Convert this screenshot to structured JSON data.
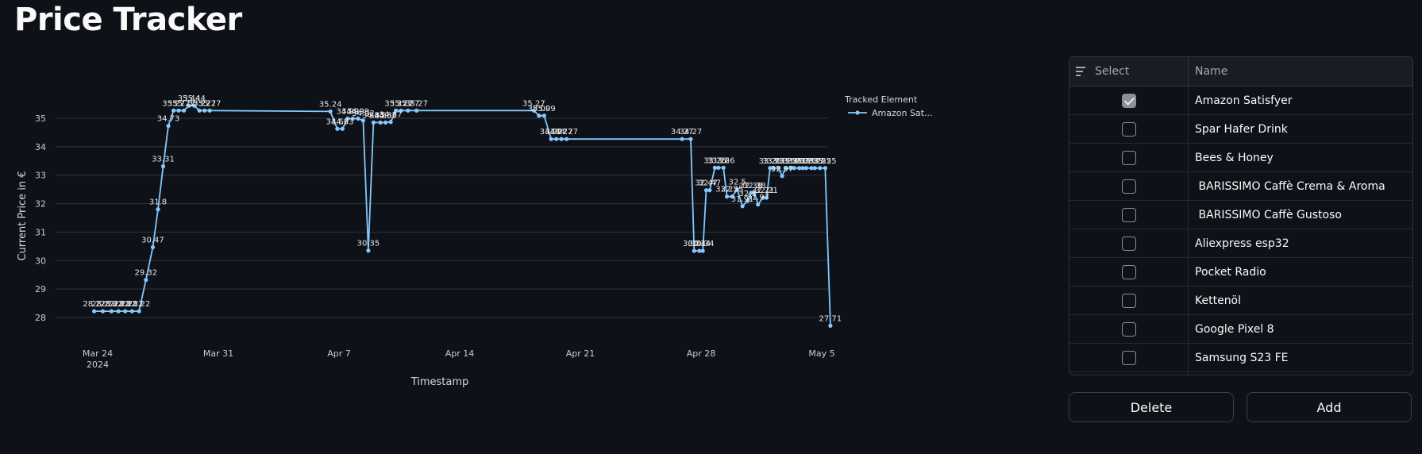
{
  "app": {
    "title": "Price Tracker"
  },
  "chart_data": {
    "type": "line",
    "xlabel": "Timestamp",
    "ylabel": "Current Price in €",
    "ylim": [
      27.4,
      35.9
    ],
    "yticks": [
      "28",
      "29",
      "30",
      "31",
      "32",
      "33",
      "34",
      "35"
    ],
    "xticks": [
      {
        "label": "Mar 24",
        "sub": "2024",
        "day": 24
      },
      {
        "label": "Mar 31",
        "sub": "",
        "day": 31
      },
      {
        "label": "Apr 7",
        "sub": "",
        "day": 38
      },
      {
        "label": "Apr 14",
        "sub": "",
        "day": 45
      },
      {
        "label": "Apr 21",
        "sub": "",
        "day": 52
      },
      {
        "label": "Apr 28",
        "sub": "",
        "day": 59
      },
      {
        "label": "May 5",
        "sub": "",
        "day": 66
      }
    ],
    "legend": {
      "title": "Tracked Element",
      "placement": "right",
      "entries": [
        "Amazon Sat..."
      ]
    },
    "color": "#83c9ff",
    "series": [
      {
        "name": "Amazon Satisfyer",
        "x": [
          23.8,
          24.3,
          24.8,
          25.2,
          25.6,
          26.0,
          26.4,
          26.8,
          27.2,
          27.5,
          27.8,
          28.1,
          28.4,
          28.7,
          29.0,
          29.3,
          29.6,
          29.9,
          30.2,
          30.5,
          37.5,
          37.9,
          38.2,
          38.5,
          38.8,
          39.1,
          39.4,
          39.7,
          40.0,
          40.4,
          40.7,
          41.0,
          41.3,
          41.6,
          42.0,
          42.5,
          49.3,
          49.6,
          49.9,
          50.3,
          50.6,
          50.9,
          51.2,
          57.9,
          58.4,
          58.6,
          58.9,
          59.1,
          59.3,
          59.5,
          59.8,
          60.0,
          60.3,
          60.5,
          60.8,
          61.1,
          61.4,
          61.7,
          61.9,
          62.1,
          62.3,
          62.6,
          62.8,
          63.0,
          63.2,
          63.5,
          63.7,
          63.9,
          64.2,
          64.4,
          64.7,
          64.9,
          65.1,
          65.4,
          65.6,
          65.9,
          66.2,
          66.5
        ],
        "values": [
          28.22,
          28.22,
          28.22,
          28.22,
          28.22,
          28.22,
          28.22,
          29.32,
          30.47,
          31.8,
          33.31,
          34.73,
          35.27,
          35.27,
          35.27,
          35.44,
          35.44,
          35.27,
          35.27,
          35.27,
          35.24,
          34.63,
          34.63,
          34.99,
          34.99,
          34.99,
          34.92,
          30.35,
          34.85,
          34.85,
          34.85,
          34.87,
          35.27,
          35.27,
          35.27,
          35.27,
          35.27,
          35.09,
          35.09,
          34.27,
          34.27,
          34.27,
          34.27,
          34.27,
          34.27,
          30.34,
          30.34,
          30.34,
          32.47,
          32.47,
          33.26,
          33.26,
          33.26,
          32.25,
          32.25,
          32.5,
          31.91,
          32.1,
          32.38,
          32.38,
          31.97,
          32.21,
          32.21,
          33.25,
          33.25,
          33.25,
          32.97,
          33.25,
          33.25,
          33.25,
          33.25,
          33.25,
          33.25,
          33.25,
          33.25,
          33.25,
          33.25,
          27.71
        ],
        "labels": [
          "28.22",
          "28.22",
          "28.22",
          "28.22",
          "28.22",
          "28.22",
          "28.22",
          "29.32",
          "30.47",
          "31.8",
          "33.31",
          "34.73",
          "35.27",
          "35.27",
          "35.27",
          "35.44",
          "35.44",
          "35.27",
          "35.27",
          "35.27",
          "35.24",
          "34.63",
          "34.63",
          "34.99",
          "34.99",
          "34.99",
          "34.92",
          "30.35",
          "34.85",
          "34.85",
          "34.85",
          "34.87",
          "35.27",
          "35.27",
          "35.27",
          "35.27",
          "35.27",
          "35.09",
          "35.09",
          "34.27",
          "34.27",
          "34.27",
          "34.27",
          "34.27",
          "34.27",
          "30.34",
          "30.34",
          "30.34",
          "32.47",
          "32.47",
          "33.26",
          "33.26",
          "33.26",
          "32.25",
          "32.25",
          "32.5",
          "31.91",
          "32.1",
          "32.38",
          "32.38",
          "31.97",
          "32.21",
          "32.21",
          "33.25",
          "33.25",
          "33.25",
          "32.97",
          "33.25",
          "33.25",
          "33.25",
          "33.25",
          "33.25",
          "33.25",
          "33.25",
          "33.25",
          "33.25",
          "33.25",
          "27.71"
        ]
      }
    ]
  },
  "table": {
    "headers": {
      "select": "Select",
      "name": "Name"
    },
    "rows": [
      {
        "name": "Amazon Satisfyer",
        "checked": true
      },
      {
        "name": "Spar Hafer Drink",
        "checked": false
      },
      {
        "name": "Bees & Honey",
        "checked": false
      },
      {
        "name": " BARISSIMO Caffè Crema & Aroma",
        "checked": false
      },
      {
        "name": " BARISSIMO Caffè Gustoso",
        "checked": false
      },
      {
        "name": "Aliexpress esp32",
        "checked": false
      },
      {
        "name": "Pocket Radio",
        "checked": false
      },
      {
        "name": "Kettenöl",
        "checked": false
      },
      {
        "name": "Google Pixel 8",
        "checked": false
      },
      {
        "name": "Samsung S23 FE",
        "checked": false
      },
      {
        "name": "",
        "checked": false
      }
    ]
  },
  "buttons": {
    "delete": "Delete",
    "add": "Add"
  }
}
